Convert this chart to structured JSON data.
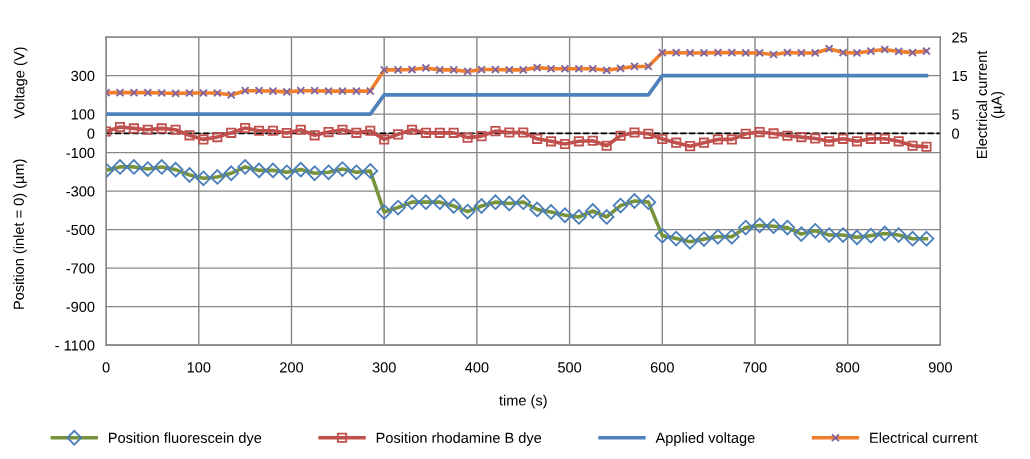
{
  "chart_data": {
    "type": "line",
    "xlabel": "time (s)",
    "ylabel": "Position (inlet = 0) (µm)",
    "y2label": "Electrical current\n(µA)",
    "annotations": [
      "Voltage (V)"
    ],
    "x": [
      0,
      15,
      30,
      45,
      60,
      75,
      90,
      105,
      120,
      135,
      150,
      165,
      180,
      195,
      210,
      225,
      240,
      255,
      270,
      285,
      300,
      315,
      330,
      345,
      360,
      375,
      390,
      405,
      420,
      435,
      450,
      465,
      480,
      495,
      510,
      525,
      540,
      555,
      570,
      585,
      600,
      615,
      630,
      645,
      660,
      675,
      690,
      705,
      720,
      735,
      750,
      765,
      780,
      795,
      810,
      825,
      840,
      855,
      870,
      885
    ],
    "series": [
      {
        "name": "Position fluorescein dye",
        "color": "#77933c",
        "marker": "diamond",
        "values": [
          -192,
          -174,
          -174,
          -185,
          -174,
          -188,
          -216,
          -233,
          -226,
          -207,
          -174,
          -192,
          -192,
          -202,
          -188,
          -207,
          -202,
          -185,
          -202,
          -195,
          -408,
          -385,
          -357,
          -357,
          -357,
          -377,
          -406,
          -377,
          -357,
          -364,
          -357,
          -395,
          -408,
          -425,
          -434,
          -403,
          -434,
          -375,
          -351,
          -357,
          -531,
          -546,
          -563,
          -549,
          -537,
          -537,
          -489,
          -478,
          -482,
          -489,
          -523,
          -506,
          -528,
          -528,
          -540,
          -531,
          -520,
          -528,
          -547,
          -547
        ]
      },
      {
        "name": "Position rhodamine B dye",
        "color": "#c0504d",
        "marker": "square",
        "values": [
          10,
          33,
          26,
          19,
          26,
          19,
          -10,
          -31,
          -19,
          3,
          28,
          14,
          14,
          2,
          19,
          -10,
          7,
          19,
          3,
          14,
          -31,
          -5,
          19,
          3,
          3,
          3,
          -22,
          -14,
          12,
          5,
          5,
          -28,
          -41,
          -55,
          -41,
          -38,
          -64,
          -12,
          5,
          -2,
          -29,
          -48,
          -66,
          -48,
          -31,
          -31,
          -2,
          7,
          0,
          -12,
          -19,
          -26,
          -41,
          -28,
          -41,
          -28,
          -28,
          -41,
          -64,
          -69
        ]
      },
      {
        "name": "Applied voltage",
        "color": "#4f81bd",
        "marker": "none",
        "values": [
          100,
          100,
          100,
          100,
          100,
          100,
          100,
          100,
          100,
          100,
          100,
          100,
          100,
          100,
          100,
          100,
          100,
          100,
          100,
          100,
          200,
          200,
          200,
          200,
          200,
          200,
          200,
          200,
          200,
          200,
          200,
          200,
          200,
          200,
          200,
          200,
          200,
          200,
          200,
          200,
          300,
          300,
          300,
          300,
          300,
          300,
          300,
          300,
          300,
          300,
          300,
          300,
          300,
          300,
          300,
          300,
          300,
          300,
          300,
          300
        ]
      },
      {
        "name": "Electrical current",
        "color": "#f07f2d",
        "marker": "cross",
        "axis": "y2",
        "values": [
          10.6,
          10.6,
          10.6,
          10.6,
          10.5,
          10.4,
          10.5,
          10.5,
          10.5,
          10.0,
          11.1,
          11.1,
          11.0,
          10.8,
          11.1,
          11.1,
          11.0,
          11.0,
          11.0,
          11.0,
          16.5,
          16.5,
          16.6,
          17.0,
          16.5,
          16.5,
          16.1,
          16.6,
          16.6,
          16.5,
          16.5,
          17.1,
          16.8,
          16.8,
          16.8,
          16.8,
          16.4,
          16.9,
          17.4,
          17.4,
          21.0,
          21.0,
          20.9,
          20.9,
          21.0,
          21.0,
          20.9,
          20.9,
          20.5,
          21.0,
          20.9,
          20.9,
          22.0,
          21.0,
          20.9,
          21.4,
          21.8,
          21.3,
          21.0,
          21.4
        ]
      }
    ],
    "xlim": [
      0,
      900
    ],
    "xticks": [
      0,
      100,
      200,
      300,
      400,
      500,
      600,
      700,
      800,
      900
    ],
    "ylim": [
      -1100,
      500
    ],
    "yticks": [
      {
        "value": -1100,
        "label": "- 1100"
      },
      -900,
      -700,
      -500,
      -300,
      -100,
      0,
      100,
      300
    ],
    "y2lim": [
      -55,
      25
    ],
    "y2ticks": [
      0,
      5,
      15,
      25
    ],
    "ref_lines": [
      {
        "axis": "y",
        "value": 0,
        "color": "#000000",
        "line_style": "dashed"
      }
    ],
    "grid": true,
    "legend": "bottom",
    "line_style": "solid"
  }
}
